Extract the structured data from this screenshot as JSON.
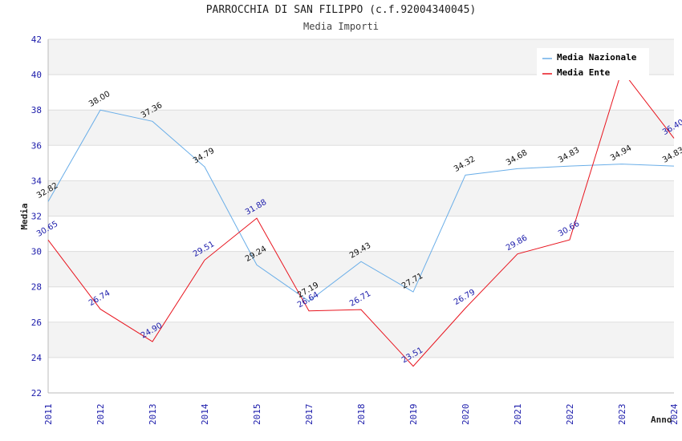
{
  "chart_data": {
    "type": "line",
    "title": "PARROCCHIA DI SAN FILIPPO (c.f.92004340045)",
    "subtitle": "Media Importi",
    "xlabel": "Anno",
    "ylabel": "Media",
    "ylim": [
      22,
      42
    ],
    "yticks": [
      22,
      24,
      26,
      28,
      30,
      32,
      34,
      36,
      38,
      40,
      42
    ],
    "grid": true,
    "legend_position": "top-right",
    "x": [
      "2011",
      "2012",
      "2013",
      "2014",
      "2015",
      "2017",
      "2018",
      "2019",
      "2020",
      "2021",
      "2022",
      "2023",
      "2024"
    ],
    "series": [
      {
        "name": "Media Nazionale",
        "color": "#6aaee8",
        "label_color": "#111111",
        "values": [
          32.82,
          38.0,
          37.36,
          34.79,
          29.24,
          27.19,
          29.43,
          27.71,
          34.32,
          34.68,
          34.83,
          34.94,
          34.83
        ],
        "labels": [
          "32.82",
          "38.00",
          "37.36",
          "34.79",
          "29.24",
          "27.19",
          "29.43",
          "27.71",
          "34.32",
          "34.68",
          "34.83",
          "34.94",
          "34.83"
        ]
      },
      {
        "name": "Media Ente",
        "color": "#e8141e",
        "label_color": "#1a1aaa",
        "values": [
          30.65,
          26.74,
          24.9,
          29.51,
          31.88,
          26.64,
          26.71,
          23.51,
          26.79,
          29.86,
          30.66,
          40.24,
          36.4
        ],
        "labels": [
          "30.65",
          "26.74",
          "24.90",
          "29.51",
          "31.88",
          "26.64",
          "26.71",
          "23.51",
          "26.79",
          "29.86",
          "30.66",
          "",
          "36.40"
        ]
      }
    ]
  }
}
